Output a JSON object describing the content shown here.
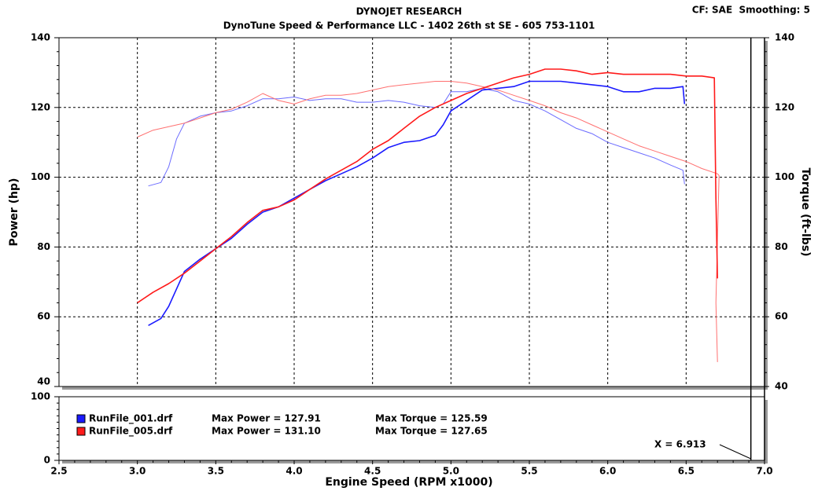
{
  "chart_data": {
    "type": "line",
    "title": "DYNOJET RESEARCH",
    "subtitle": "DynoTune Speed & Performance LLC - 1402 26th st SE - 605 753-1101",
    "settings_label": "CF: SAE  Smoothing: 5",
    "x_label": "Engine Speed (RPM x1000)",
    "y_label": "Power (hp)",
    "y2_label": "Torque (ft-lbs)",
    "xlim": [
      2.5,
      7.0
    ],
    "xticks": [
      2.5,
      {
        "value": 3,
        "label": "3.0"
      },
      3.5,
      {
        "value": 4,
        "label": "4.0"
      },
      4.5,
      {
        "value": 5,
        "label": "5.0"
      },
      5.5,
      {
        "value": 6,
        "label": "6.0"
      },
      6.5,
      {
        "value": 7,
        "label": "7.0"
      }
    ],
    "ylim": [
      40,
      140
    ],
    "yticks": [
      40,
      60,
      80,
      100,
      120,
      140
    ],
    "y2lim": [
      40,
      140
    ],
    "y2ticks": [
      40,
      60,
      80,
      100,
      120,
      140
    ],
    "lower_ylim": [
      0,
      100
    ],
    "lower_yticks": [
      0,
      100
    ],
    "grid": true,
    "cursor": {
      "x": 6.913,
      "label": "X = 6.913"
    },
    "series": [
      {
        "name": "RunFile_001.drf",
        "color": "#1a1aff",
        "torque_color": "#6b6bff",
        "max_power": "Max Power = 127.91",
        "max_torque": "Max Torque = 125.59",
        "power": {
          "x": [
            3.07,
            3.15,
            3.2,
            3.25,
            3.3,
            3.4,
            3.5,
            3.6,
            3.7,
            3.8,
            3.9,
            4.0,
            4.1,
            4.2,
            4.3,
            4.4,
            4.5,
            4.6,
            4.7,
            4.8,
            4.9,
            4.95,
            5.0,
            5.1,
            5.2,
            5.3,
            5.4,
            5.5,
            5.6,
            5.7,
            5.8,
            5.9,
            6.0,
            6.1,
            6.2,
            6.3,
            6.4,
            6.48,
            6.49
          ],
          "values": [
            57.5,
            59.5,
            63,
            68,
            73,
            76.5,
            79.5,
            82.5,
            86.5,
            90,
            91.5,
            94,
            96.5,
            99,
            101,
            103,
            105.5,
            108.5,
            110,
            110.5,
            112,
            115,
            119,
            122,
            125,
            125.5,
            126,
            127.5,
            127.5,
            127.5,
            127,
            126.5,
            126,
            124.5,
            124.5,
            125.5,
            125.5,
            126,
            121
          ]
        },
        "torque": {
          "x": [
            3.07,
            3.15,
            3.2,
            3.25,
            3.3,
            3.4,
            3.5,
            3.6,
            3.7,
            3.8,
            3.9,
            4.0,
            4.1,
            4.2,
            4.3,
            4.4,
            4.5,
            4.6,
            4.7,
            4.8,
            4.9,
            4.95,
            5.0,
            5.1,
            5.2,
            5.3,
            5.4,
            5.5,
            5.6,
            5.7,
            5.8,
            5.9,
            6.0,
            6.1,
            6.2,
            6.3,
            6.4,
            6.48,
            6.49
          ],
          "values": [
            97.5,
            98.5,
            103,
            111,
            115.5,
            117.5,
            118.5,
            119,
            120.5,
            122.5,
            122.5,
            123,
            122,
            122.5,
            122.5,
            121.5,
            121.5,
            122,
            121.5,
            120.5,
            120,
            121,
            124.5,
            124.5,
            125.5,
            124.5,
            122,
            121,
            119,
            116.5,
            114,
            112.5,
            110,
            108.5,
            107,
            105.5,
            103.5,
            102,
            98
          ]
        }
      },
      {
        "name": "RunFile_005.drf",
        "color": "#ff1a1a",
        "torque_color": "#ff7070",
        "max_power": "Max Power = 131.10",
        "max_torque": "Max Torque = 127.65",
        "power": {
          "x": [
            3.0,
            3.1,
            3.2,
            3.3,
            3.4,
            3.5,
            3.6,
            3.7,
            3.8,
            3.9,
            4.0,
            4.1,
            4.2,
            4.3,
            4.4,
            4.5,
            4.6,
            4.7,
            4.8,
            4.9,
            5.0,
            5.1,
            5.2,
            5.3,
            5.4,
            5.5,
            5.6,
            5.7,
            5.8,
            5.9,
            6.0,
            6.1,
            6.2,
            6.3,
            6.4,
            6.5,
            6.6,
            6.68,
            6.69,
            6.7
          ],
          "values": [
            64,
            67,
            69.5,
            72.5,
            76,
            79.5,
            83,
            87,
            90.5,
            91.5,
            93.5,
            96.5,
            99.5,
            102,
            104.5,
            108,
            110.5,
            114,
            117.5,
            120,
            122,
            124,
            125.5,
            127,
            128.5,
            129.5,
            131,
            131,
            130.5,
            129.5,
            130,
            129.5,
            129.5,
            129.5,
            129.5,
            129,
            129,
            128.5,
            94,
            71
          ]
        },
        "torque": {
          "x": [
            3.0,
            3.1,
            3.2,
            3.3,
            3.4,
            3.5,
            3.6,
            3.7,
            3.8,
            3.9,
            4.0,
            4.1,
            4.2,
            4.3,
            4.4,
            4.5,
            4.6,
            4.7,
            4.8,
            4.9,
            5.0,
            5.1,
            5.2,
            5.3,
            5.4,
            5.5,
            5.6,
            5.7,
            5.8,
            5.9,
            6.0,
            6.1,
            6.2,
            6.3,
            6.4,
            6.5,
            6.6,
            6.7,
            6.71,
            6.69,
            6.7
          ],
          "values": [
            111.5,
            113.5,
            114.5,
            115.5,
            117,
            118.5,
            119.5,
            121.5,
            124,
            122,
            121,
            122.5,
            123.5,
            123.5,
            124,
            125,
            126,
            126.5,
            127,
            127.5,
            127.5,
            127,
            126,
            125,
            123.5,
            122,
            120.5,
            118.5,
            117,
            115,
            113,
            111,
            109,
            107.5,
            106,
            104.5,
            102.5,
            101,
            100.5,
            64,
            47
          ]
        }
      }
    ]
  }
}
